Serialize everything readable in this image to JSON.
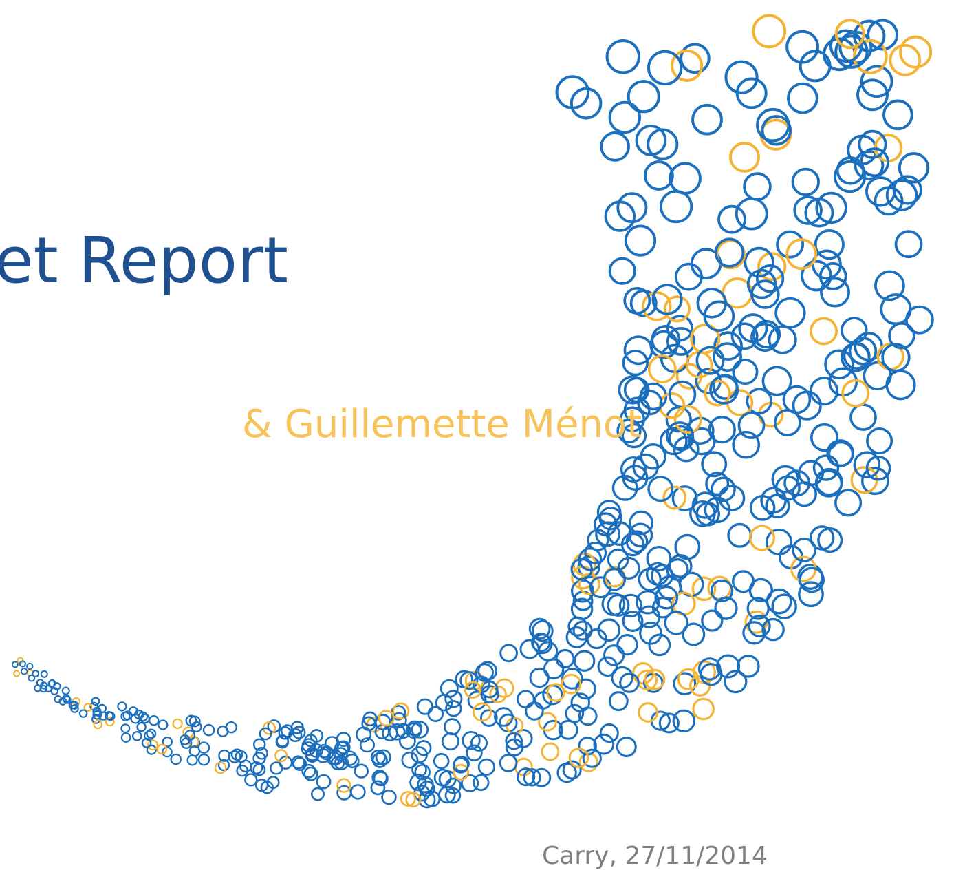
{
  "slide": {
    "title": "et Report",
    "subtitle": "& Guillemette Ménot",
    "footer": "Carry, 27/11/2014"
  }
}
